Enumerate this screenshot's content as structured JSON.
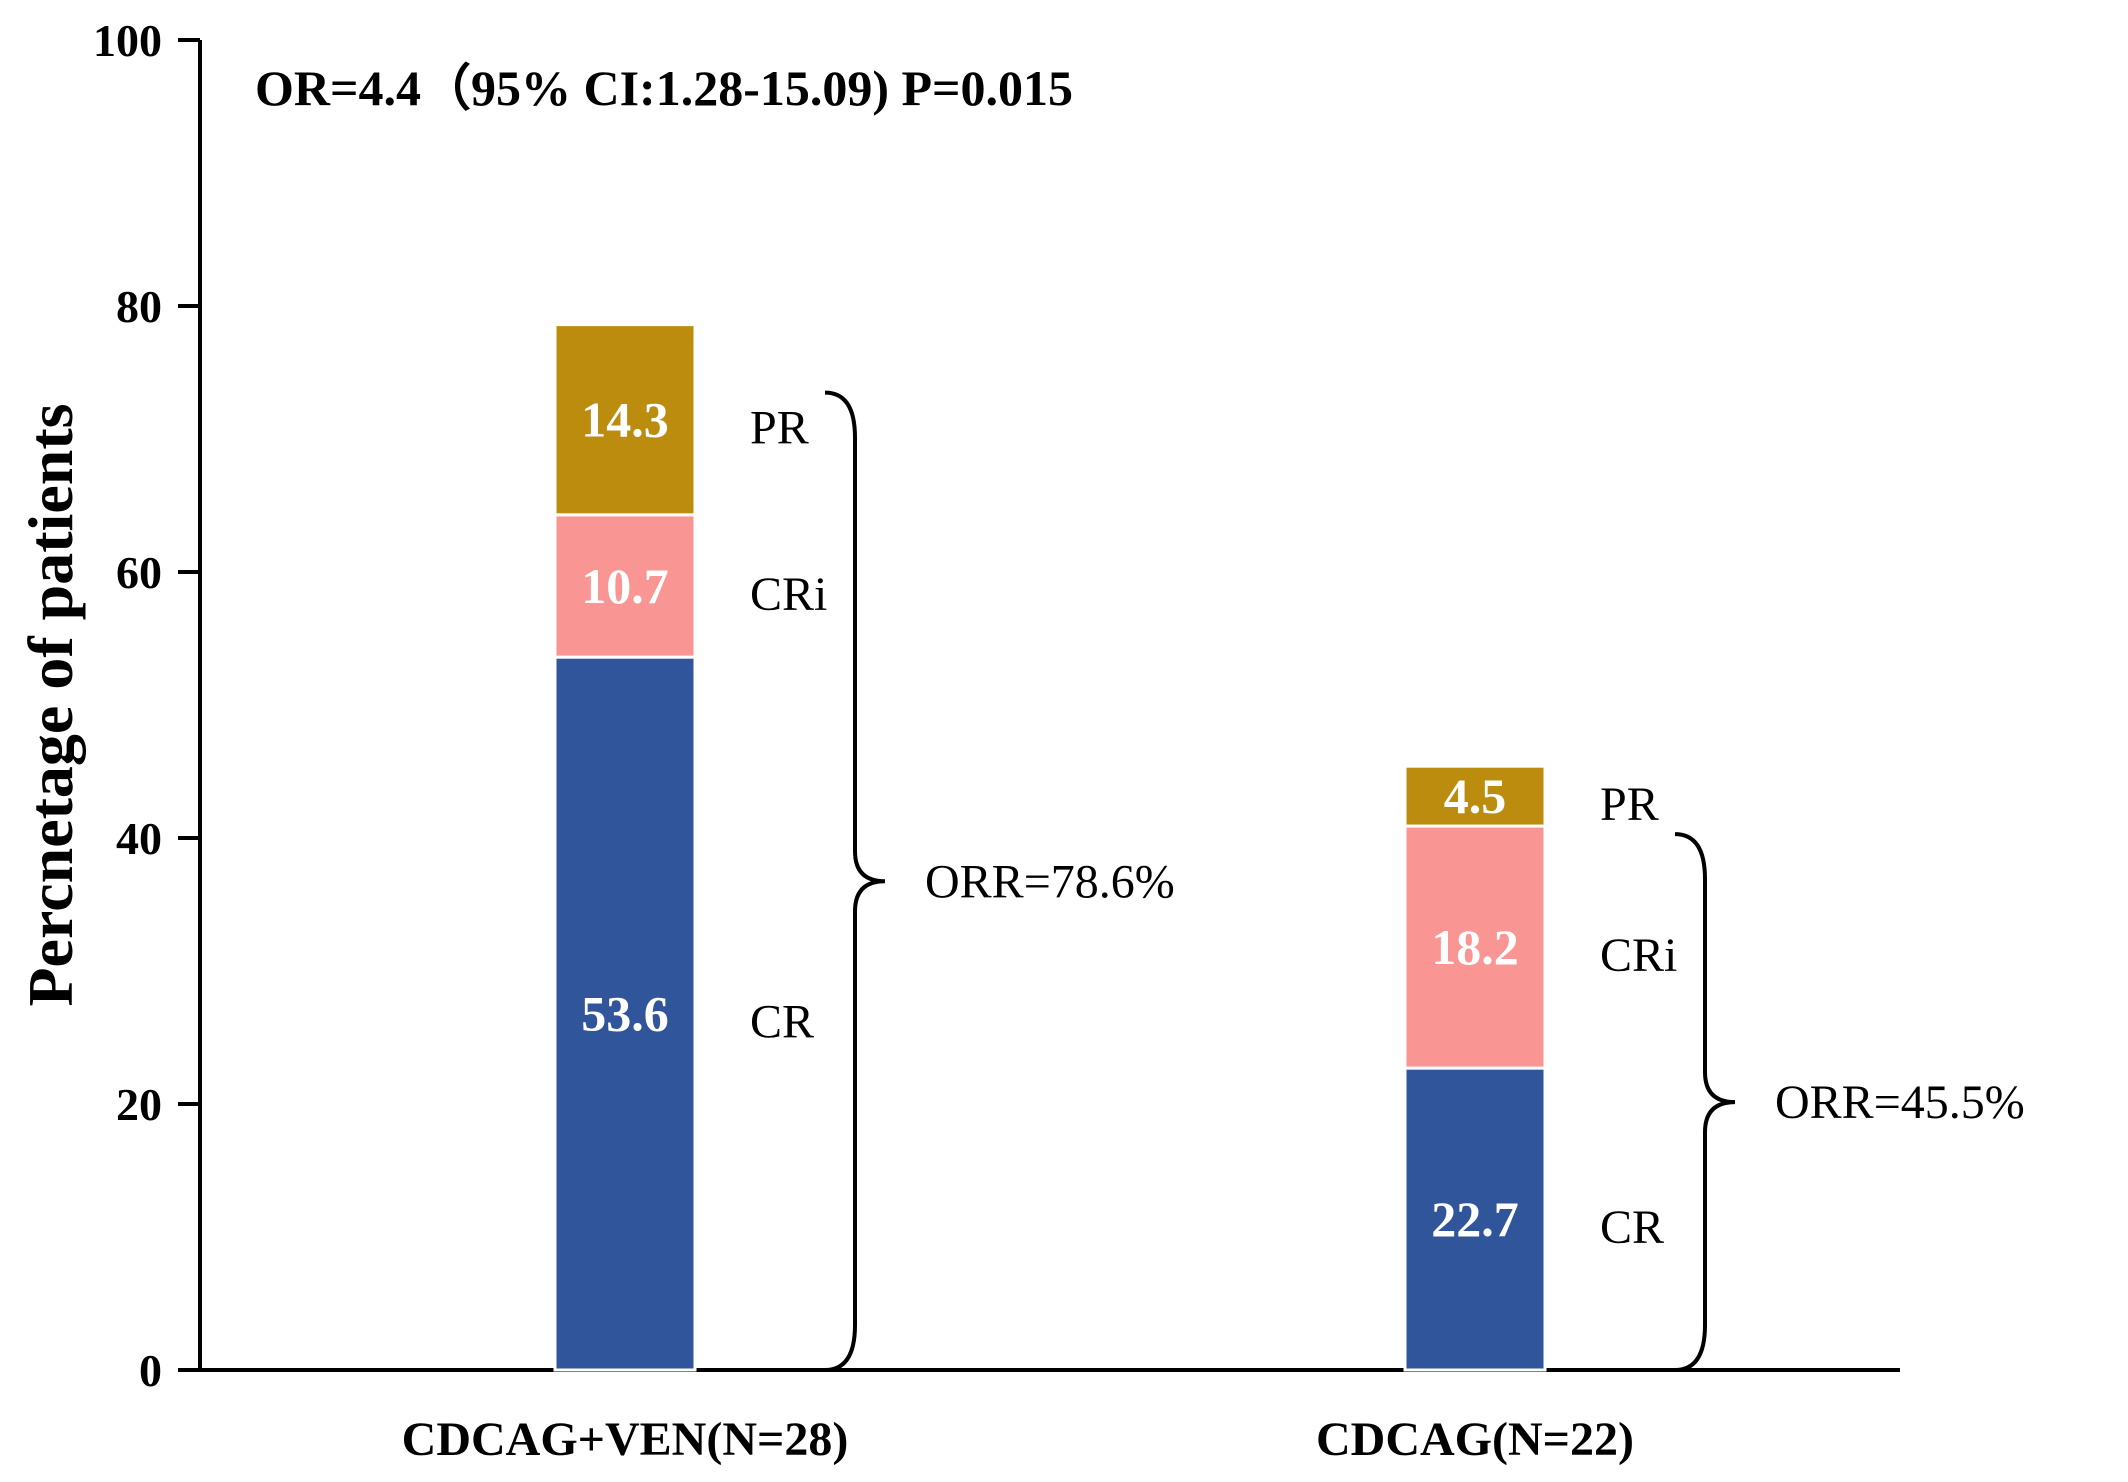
{
  "chart_data": {
    "type": "bar",
    "stacked": true,
    "title": "",
    "annotation": "OR=4.4（95% CI:1.28-15.09) P=0.015",
    "xlabel": "",
    "ylabel": "Percnetage of patients",
    "ylim": [
      0,
      100
    ],
    "yticks": [
      0,
      20,
      40,
      60,
      80,
      100
    ],
    "categories": [
      "CDCAG+VEN(N=28)",
      "CDCAG(N=22)"
    ],
    "series": [
      {
        "name": "CR",
        "values": [
          53.6,
          22.7
        ],
        "color": "#31559a"
      },
      {
        "name": "CRi",
        "values": [
          10.7,
          18.2
        ],
        "color": "#f99593"
      },
      {
        "name": "PR",
        "values": [
          14.3,
          4.5
        ],
        "color": "#bc8c0f"
      }
    ],
    "value_labels": [
      [
        "53.6",
        "10.7",
        "14.3"
      ],
      [
        "22.7",
        "18.2",
        "4.5"
      ]
    ],
    "orr_labels": [
      "ORR=78.6%",
      "ORR=45.5%"
    ],
    "grid": false,
    "legend": "none"
  }
}
